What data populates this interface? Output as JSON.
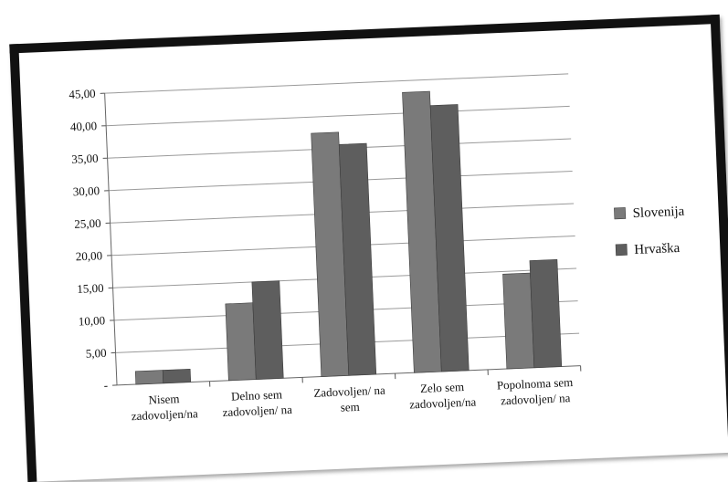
{
  "chart_data": {
    "type": "bar",
    "categories": [
      [
        "Nisem",
        "zadovoljen/na"
      ],
      [
        "Delno sem",
        "zadovoljen/ na"
      ],
      [
        "Zadovoljen/ na",
        "sem"
      ],
      [
        "Zelo sem",
        "zadovoljen/na"
      ],
      [
        "Popolnoma sem",
        "zadovoljen/ na"
      ]
    ],
    "series": [
      {
        "name": "Slovenija",
        "color": "#7a7a7a",
        "values": [
          2.0,
          11.8,
          37.5,
          43.2,
          14.6
        ]
      },
      {
        "name": "Hrvaška",
        "color": "#5e5e5e",
        "values": [
          2.0,
          15.0,
          35.6,
          41.0,
          16.5
        ]
      }
    ],
    "ylim": [
      0,
      45
    ],
    "yticks": [
      "-",
      "5,00",
      "10,00",
      "15,00",
      "20,00",
      "25,00",
      "30,00",
      "35,00",
      "40,00",
      "45,00"
    ],
    "grid": true,
    "legend_position": "right",
    "title": "",
    "xlabel": "",
    "ylabel": ""
  }
}
